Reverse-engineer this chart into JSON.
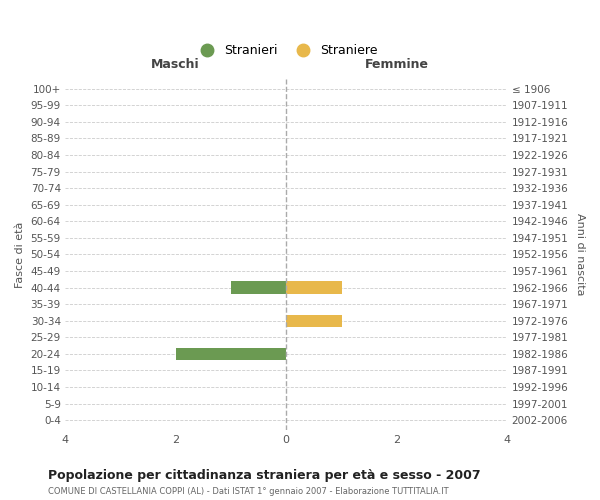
{
  "age_groups": [
    "0-4",
    "5-9",
    "10-14",
    "15-19",
    "20-24",
    "25-29",
    "30-34",
    "35-39",
    "40-44",
    "45-49",
    "50-54",
    "55-59",
    "60-64",
    "65-69",
    "70-74",
    "75-79",
    "80-84",
    "85-89",
    "90-94",
    "95-99",
    "100+"
  ],
  "birth_years": [
    "2002-2006",
    "1997-2001",
    "1992-1996",
    "1987-1991",
    "1982-1986",
    "1977-1981",
    "1972-1976",
    "1967-1971",
    "1962-1966",
    "1957-1961",
    "1952-1956",
    "1947-1951",
    "1942-1946",
    "1937-1941",
    "1932-1936",
    "1927-1931",
    "1922-1926",
    "1917-1921",
    "1912-1916",
    "1907-1911",
    "≤ 1906"
  ],
  "stranieri_maschi": [
    0,
    0,
    0,
    0,
    2,
    0,
    0,
    0,
    1,
    0,
    0,
    0,
    0,
    0,
    0,
    0,
    0,
    0,
    0,
    0,
    0
  ],
  "straniere_femmine": [
    0,
    0,
    0,
    0,
    0,
    0,
    1,
    0,
    1,
    0,
    0,
    0,
    0,
    0,
    0,
    0,
    0,
    0,
    0,
    0,
    0
  ],
  "color_maschi": "#6b9a52",
  "color_femmine": "#e8b84b",
  "xlim": [
    -4,
    4
  ],
  "xlabel_left": "Maschi",
  "xlabel_right": "Femmine",
  "ylabel_left": "Fasce di età",
  "ylabel_right": "Anni di nascita",
  "legend_stranieri": "Stranieri",
  "legend_straniere": "Straniere",
  "title": "Popolazione per cittadinanza straniera per età e sesso - 2007",
  "subtitle": "COMUNE DI CASTELLANIA COPPI (AL) - Dati ISTAT 1° gennaio 2007 - Elaborazione TUTTITALIA.IT",
  "xticks": [
    -4,
    -2,
    0,
    2,
    4
  ],
  "bar_height": 0.75,
  "background_color": "#ffffff",
  "grid_color": "#cccccc",
  "center_line_color": "#aaaaaa"
}
